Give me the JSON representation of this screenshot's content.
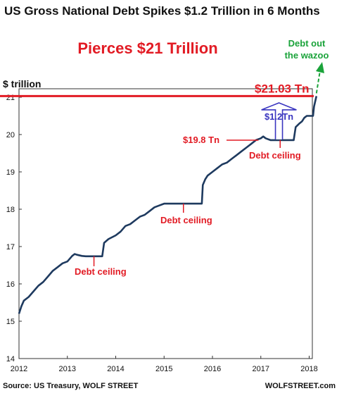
{
  "chart_data": {
    "type": "line",
    "title": "US Gross National Debt Spikes $1.2 Trillion in 6 Months",
    "subtitle": "Pierces $21 Trillion",
    "ylabel": "$ trillion",
    "xlabel": "",
    "xlim": [
      2012,
      2018.2
    ],
    "ylim": [
      14,
      21.2
    ],
    "grid": false,
    "x_ticks": [
      "2012",
      "2013",
      "2014",
      "2015",
      "2016",
      "2017",
      "2018"
    ],
    "y_ticks": [
      "14",
      "15",
      "16",
      "17",
      "18",
      "19",
      "20",
      "21"
    ],
    "series": [
      {
        "color": "#1e3a5f",
        "x": [
          2012.0,
          2012.05,
          2012.1,
          2012.2,
          2012.3,
          2012.4,
          2012.5,
          2012.6,
          2012.7,
          2012.8,
          2012.9,
          2013.0,
          2013.1,
          2013.15,
          2013.2,
          2013.3,
          2013.38,
          2013.5,
          2013.6,
          2013.72,
          2013.76,
          2013.85,
          2014.0,
          2014.1,
          2014.2,
          2014.3,
          2014.4,
          2014.5,
          2014.6,
          2014.7,
          2014.8,
          2014.9,
          2015.0,
          2015.2,
          2015.45,
          2015.78,
          2015.8,
          2015.85,
          2015.9,
          2016.0,
          2016.1,
          2016.2,
          2016.3,
          2016.4,
          2016.5,
          2016.6,
          2016.7,
          2016.8,
          2016.9,
          2017.0,
          2017.05,
          2017.1,
          2017.2,
          2017.4,
          2017.6,
          2017.68,
          2017.72,
          2017.8,
          2017.85,
          2017.9,
          2017.95,
          2018.0,
          2018.04,
          2018.08,
          2018.1,
          2018.15
        ],
        "y": [
          15.2,
          15.4,
          15.55,
          15.65,
          15.8,
          15.95,
          16.05,
          16.2,
          16.35,
          16.45,
          16.55,
          16.6,
          16.75,
          16.8,
          16.78,
          16.75,
          16.74,
          16.74,
          16.74,
          16.74,
          17.1,
          17.2,
          17.3,
          17.4,
          17.55,
          17.6,
          17.7,
          17.8,
          17.85,
          17.95,
          18.05,
          18.1,
          18.15,
          18.15,
          18.15,
          18.15,
          18.65,
          18.8,
          18.9,
          19.0,
          19.1,
          19.2,
          19.25,
          19.35,
          19.45,
          19.55,
          19.65,
          19.75,
          19.85,
          19.9,
          19.95,
          19.9,
          19.85,
          19.85,
          19.85,
          19.85,
          20.2,
          20.3,
          20.35,
          20.45,
          20.5,
          20.5,
          20.5,
          20.5,
          20.75,
          21.03
        ]
      }
    ],
    "reference_lines": [
      {
        "y": 21.03,
        "color": "#e21b24",
        "label": "$21.03 Tn"
      }
    ],
    "annotations": [
      {
        "text": "Debt ceiling",
        "color": "#e21b24",
        "x": 2013.55,
        "y": 16.74
      },
      {
        "text": "Debt ceiling",
        "color": "#e21b24",
        "x": 2015.4,
        "y": 18.15
      },
      {
        "text": "Debt ceiling",
        "color": "#e21b24",
        "x": 2017.4,
        "y": 19.85
      },
      {
        "text": "$19.8 Tn",
        "color": "#e21b24",
        "x": 2016.9,
        "y": 19.85
      },
      {
        "text": "$1.2Tn",
        "color": "#3a36c0",
        "x": 2017.35,
        "y": 20.45
      },
      {
        "text": "Debt out",
        "color": "#1aa33a",
        "x": 2018.05,
        "y": 21.6
      },
      {
        "text": "the wazoo",
        "color": "#1aa33a",
        "x": 2018.05,
        "y": 21.6
      }
    ]
  },
  "footer": {
    "source": "Source: US Treasury, WOLF STREET",
    "brand": "WOLFSTREET.com"
  }
}
